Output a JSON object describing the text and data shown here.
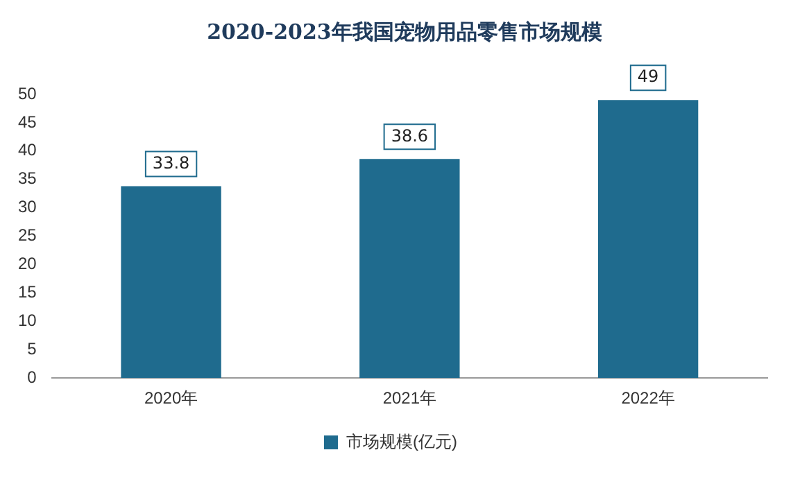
{
  "chart_data": {
    "type": "bar",
    "title": "2020-2023年我国宠物用品零售市场规模",
    "categories": [
      "2020年",
      "2021年",
      "2022年"
    ],
    "series": [
      {
        "name": "市场规模(亿元)",
        "color": "#1f6b8e",
        "values": [
          33.8,
          38.6,
          49
        ]
      }
    ],
    "ylim": [
      0,
      50
    ],
    "yticks": [
      0,
      5,
      10,
      15,
      20,
      25,
      30,
      35,
      40,
      45,
      50
    ],
    "grid": false,
    "legend": "bottom",
    "data_labels": true
  }
}
